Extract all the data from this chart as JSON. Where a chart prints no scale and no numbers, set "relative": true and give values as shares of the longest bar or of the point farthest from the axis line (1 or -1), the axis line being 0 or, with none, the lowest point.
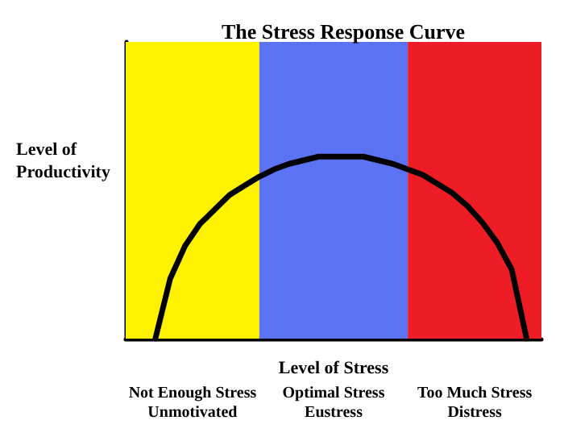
{
  "chart_data": {
    "type": "line",
    "title": "The Stress Response Curve",
    "xlabel": "Level of Stress",
    "ylabel": "Level of\nProductivity",
    "relative": true,
    "grid": false,
    "marker": "none",
    "line_style": "solid",
    "categories": [
      null,
      null,
      null,
      null,
      null,
      null,
      null,
      null,
      null,
      null,
      null,
      null,
      null,
      null,
      null,
      null,
      null,
      null,
      null,
      null,
      null,
      null,
      null,
      null,
      null,
      null,
      null,
      null,
      null
    ],
    "series": [
      {
        "color": "#000000",
        "values": [
          null,
          null,
          0,
          0.33,
          0.51,
          0.63,
          0.71,
          0.79,
          0.84,
          0.89,
          0.93,
          0.96,
          0.98,
          1,
          1,
          1,
          1,
          0.98,
          0.96,
          0.93,
          0.9,
          0.85,
          0.8,
          0.73,
          0.64,
          0.53,
          0.38,
          0,
          null
        ]
      }
    ],
    "annotations": [
      "Not Enough Stress\nUnmotivated",
      "Optimal Stress\nEustress",
      "Too Much Stress\nDistress"
    ]
  }
}
